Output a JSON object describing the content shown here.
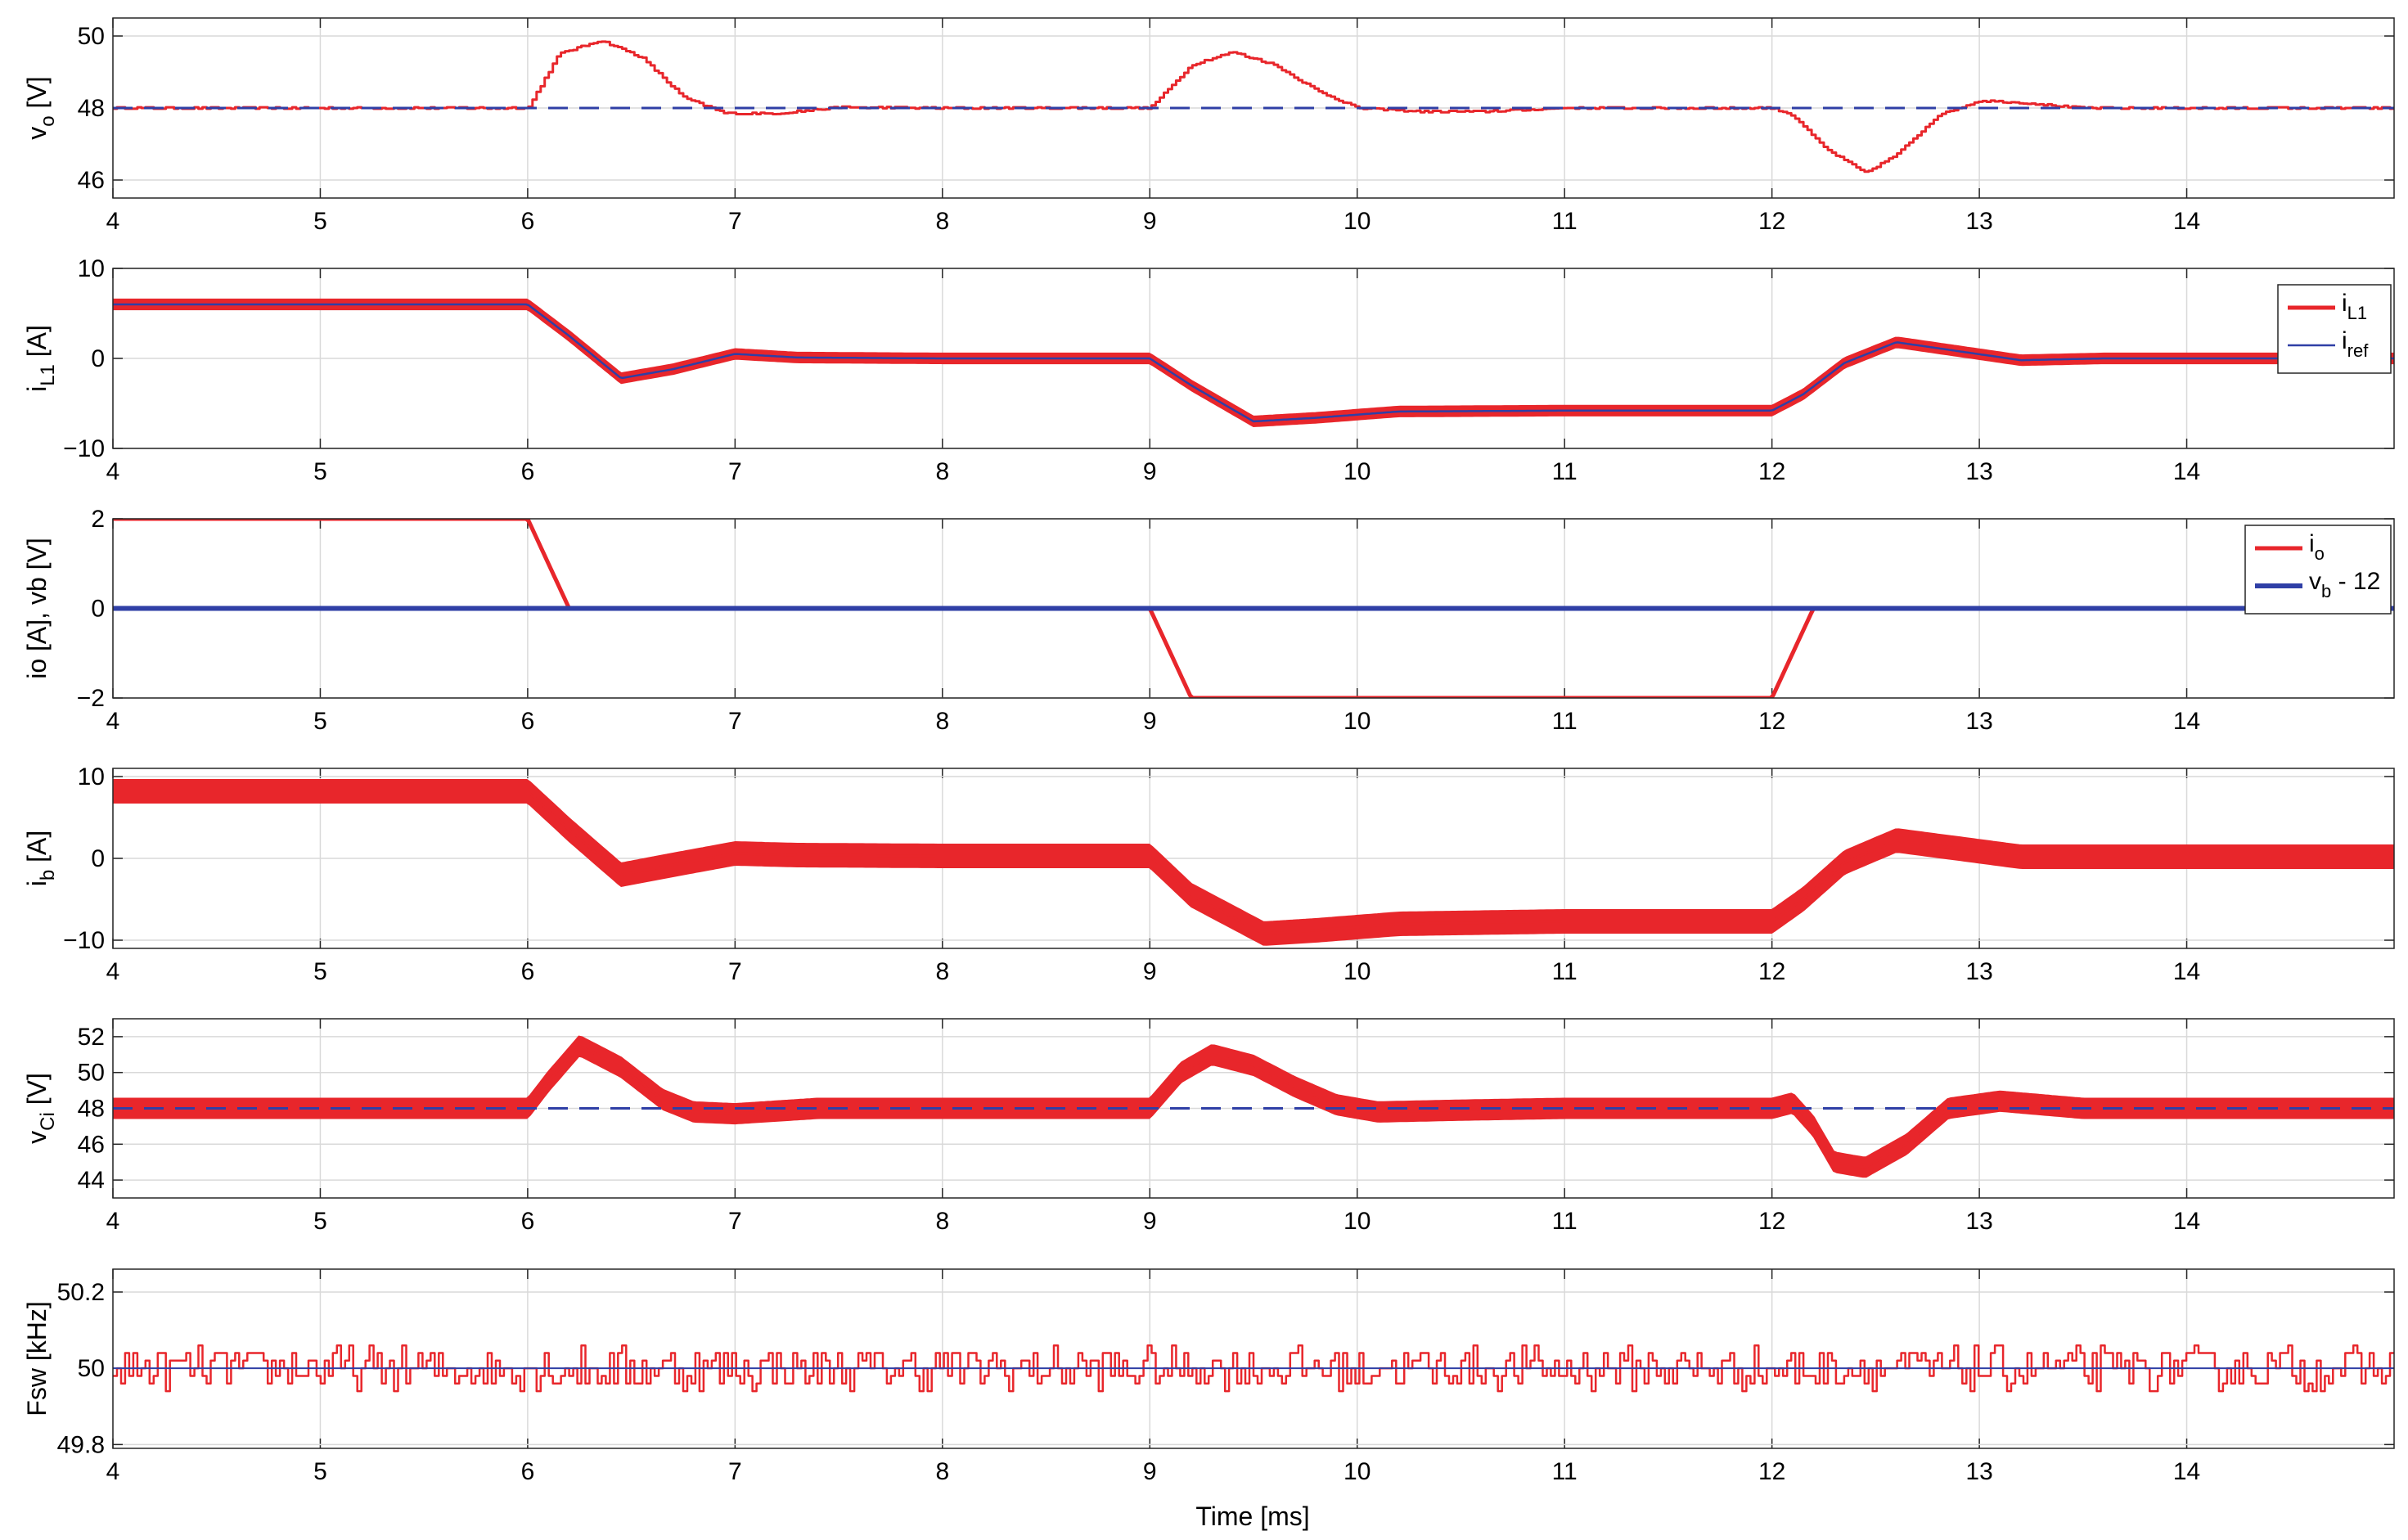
{
  "figure": {
    "xlabel": "Time [ms]"
  },
  "chart_data": [
    {
      "type": "line",
      "ylabel_main": "v",
      "ylabel_sub": "o",
      "ylabel_unit": " [V]",
      "xlim": [
        4,
        15
      ],
      "ylim": [
        45.5,
        50.5
      ],
      "xticks": [
        4,
        5,
        6,
        7,
        8,
        9,
        10,
        11,
        12,
        13,
        14
      ],
      "yticks": [
        46,
        48,
        50
      ],
      "legend": null,
      "series": [
        {
          "color": "#e8262b",
          "width": 3,
          "dash": "",
          "band": 0,
          "noise": 0.03,
          "noise_step": 0.02,
          "x": [
            4,
            6,
            6.15,
            6.35,
            6.55,
            6.75,
            6.95,
            7.2,
            7.5,
            8,
            9,
            9.2,
            9.4,
            9.6,
            9.8,
            10,
            10.3,
            10.6,
            11,
            12,
            12.1,
            12.25,
            12.45,
            12.6,
            12.8,
            13,
            13.2,
            13.5,
            14,
            15
          ],
          "y": [
            48,
            48,
            49.5,
            49.88,
            49.4,
            48.3,
            47.85,
            47.85,
            48.02,
            48,
            48,
            49.2,
            49.55,
            49.2,
            48.5,
            48,
            47.9,
            47.9,
            48,
            48,
            47.8,
            46.9,
            46.2,
            46.7,
            47.8,
            48.2,
            48.15,
            48,
            48,
            48
          ]
        },
        {
          "color": "#2f3fa6",
          "width": 3,
          "dash": "24 14",
          "band": 0,
          "x": [
            4,
            15
          ],
          "y": [
            48,
            48
          ]
        }
      ]
    },
    {
      "type": "line",
      "ylabel_main": "i",
      "ylabel_sub": "L1",
      "ylabel_unit": " [A]",
      "xlim": [
        4,
        15
      ],
      "ylim": [
        -10,
        10
      ],
      "xticks": [
        4,
        5,
        6,
        7,
        8,
        9,
        10,
        11,
        12,
        13,
        14
      ],
      "yticks": [
        -10,
        0,
        10
      ],
      "legend": {
        "position": "top-right",
        "entries": [
          {
            "main": "i",
            "sub": "L1",
            "suffix": "",
            "color": "#e8262b",
            "width": 5
          },
          {
            "main": "i",
            "sub": "ref",
            "suffix": "",
            "color": "#2f3fa6",
            "width": 2.5
          }
        ]
      },
      "series": [
        {
          "color": "#e8262b",
          "width": 3,
          "dash": "",
          "band": 0.55,
          "x": [
            4,
            6,
            6.2,
            6.45,
            6.7,
            7,
            7.3,
            8,
            9,
            9.2,
            9.5,
            9.8,
            10.2,
            11,
            12,
            12.15,
            12.35,
            12.6,
            12.9,
            13.2,
            13.6,
            15
          ],
          "y": [
            6,
            6,
            2.5,
            -2.2,
            -1.2,
            0.5,
            0.1,
            0,
            0,
            -3,
            -7,
            -6.6,
            -5.9,
            -5.8,
            -5.8,
            -4,
            -0.5,
            1.8,
            0.8,
            -0.2,
            0,
            0
          ]
        },
        {
          "color": "#2f3fa6",
          "width": 2.5,
          "dash": "",
          "band": 0,
          "x": [
            4,
            6,
            6.2,
            6.45,
            6.7,
            7,
            7.3,
            8,
            9,
            9.2,
            9.5,
            9.8,
            10.2,
            11,
            12,
            12.15,
            12.35,
            12.6,
            12.9,
            13.2,
            13.6,
            15
          ],
          "y": [
            6,
            6,
            2.5,
            -2.2,
            -1.2,
            0.5,
            0.1,
            0,
            0,
            -3,
            -7,
            -6.6,
            -5.9,
            -5.8,
            -5.8,
            -4,
            -0.5,
            1.8,
            0.8,
            -0.2,
            0,
            0
          ]
        }
      ]
    },
    {
      "type": "line",
      "ylabel_main": "io [A], vb [V]",
      "ylabel_sub": "",
      "ylabel_unit": "",
      "xlim": [
        4,
        15
      ],
      "ylim": [
        -2,
        2
      ],
      "xticks": [
        4,
        5,
        6,
        7,
        8,
        9,
        10,
        11,
        12,
        13,
        14
      ],
      "yticks": [
        -2,
        0,
        2
      ],
      "legend": {
        "position": "top-right",
        "entries": [
          {
            "main": "i",
            "sub": "o",
            "suffix": "",
            "color": "#e8262b",
            "width": 5
          },
          {
            "main": "v",
            "sub": "b",
            "suffix": " - 12",
            "color": "#2f3fa6",
            "width": 6
          }
        ]
      },
      "series": [
        {
          "color": "#e8262b",
          "width": 5,
          "dash": "",
          "band": 0,
          "x": [
            4,
            6,
            6.2,
            9,
            9.2,
            12,
            12.2,
            15
          ],
          "y": [
            2,
            2,
            0,
            0,
            -2,
            -2,
            0,
            0
          ]
        },
        {
          "color": "#2f3fa6",
          "width": 6,
          "dash": "",
          "band": 0,
          "x": [
            4,
            15
          ],
          "y": [
            0,
            0
          ]
        }
      ]
    },
    {
      "type": "line",
      "ylabel_main": "i",
      "ylabel_sub": "b",
      "ylabel_unit": " [A]",
      "xlim": [
        4,
        15
      ],
      "ylim": [
        -11,
        11
      ],
      "xticks": [
        4,
        5,
        6,
        7,
        8,
        9,
        10,
        11,
        12,
        13,
        14
      ],
      "yticks": [
        -10,
        0,
        10
      ],
      "legend": null,
      "series": [
        {
          "color": "#e8262b",
          "width": 3,
          "dash": "",
          "band": 1.4,
          "x": [
            4,
            6,
            6.2,
            6.45,
            6.7,
            7,
            7.3,
            8,
            9,
            9.2,
            9.55,
            9.8,
            10.2,
            11,
            12,
            12.15,
            12.35,
            12.6,
            12.9,
            13.2,
            13.6,
            15
          ],
          "y": [
            8.2,
            8.2,
            3.5,
            -2,
            -0.8,
            0.6,
            0.4,
            0.3,
            0.3,
            -4.5,
            -9.2,
            -8.8,
            -8,
            -7.7,
            -7.7,
            -5,
            -0.5,
            2.2,
            1.2,
            0.2,
            0.2,
            0.2
          ]
        }
      ]
    },
    {
      "type": "line",
      "ylabel_main": "v",
      "ylabel_sub": "Ci",
      "ylabel_unit": " [V]",
      "xlim": [
        4,
        15
      ],
      "ylim": [
        43,
        53
      ],
      "xticks": [
        4,
        5,
        6,
        7,
        8,
        9,
        10,
        11,
        12,
        13,
        14
      ],
      "yticks": [
        44,
        46,
        48,
        50,
        52
      ],
      "legend": null,
      "series": [
        {
          "color": "#e8262b",
          "width": 3,
          "dash": "",
          "band": 0.55,
          "x": [
            4,
            6,
            6.1,
            6.25,
            6.45,
            6.65,
            6.8,
            7,
            7.4,
            8,
            9,
            9.15,
            9.3,
            9.5,
            9.7,
            9.9,
            10.1,
            10.5,
            11,
            12,
            12.1,
            12.2,
            12.3,
            12.45,
            12.65,
            12.85,
            13.1,
            13.5,
            15
          ],
          "y": [
            48,
            48,
            49.5,
            51.5,
            50.3,
            48.5,
            47.8,
            47.7,
            48,
            48,
            48,
            50,
            51,
            50.4,
            49.2,
            48.2,
            47.8,
            47.9,
            48,
            48,
            48.3,
            47,
            45,
            44.7,
            46,
            48,
            48.4,
            48,
            48
          ]
        },
        {
          "color": "#2f3fa6",
          "width": 3,
          "dash": "24 14",
          "band": 0,
          "x": [
            4,
            15
          ],
          "y": [
            48,
            48
          ]
        }
      ]
    },
    {
      "type": "line",
      "ylabel_main": "Fsw [kHz]",
      "ylabel_sub": "",
      "ylabel_unit": "",
      "xlim": [
        4,
        15
      ],
      "ylim": [
        49.79,
        50.26
      ],
      "xticks": [
        4,
        5,
        6,
        7,
        8,
        9,
        10,
        11,
        12,
        13,
        14
      ],
      "yticks": [
        49.8,
        50,
        50.2
      ],
      "legend": null,
      "series": [
        {
          "color": "#e8262b",
          "width": 2.5,
          "dash": "",
          "band": 0,
          "noise": 0.055,
          "noise_step": 0.02,
          "x": [
            4,
            15
          ],
          "y": [
            50,
            50
          ]
        },
        {
          "color": "#2f3fa6",
          "width": 2,
          "dash": "",
          "band": 0,
          "x": [
            4,
            15
          ],
          "y": [
            50,
            50
          ]
        }
      ]
    }
  ]
}
